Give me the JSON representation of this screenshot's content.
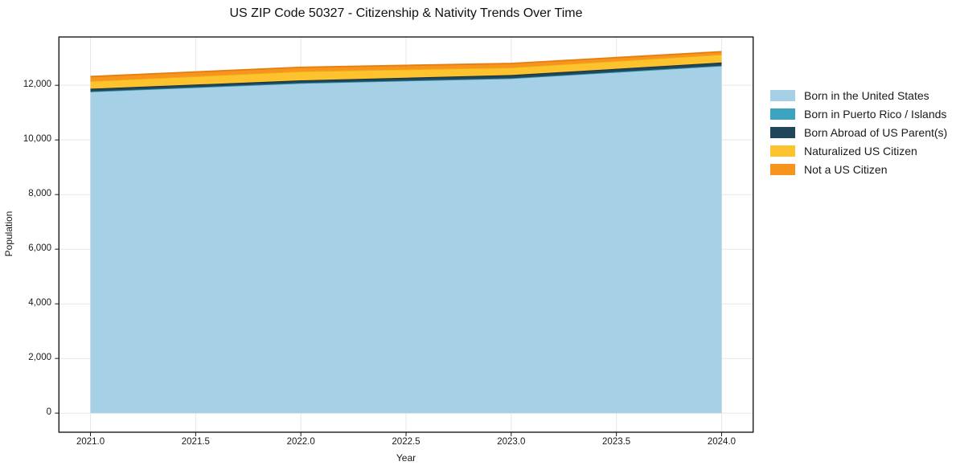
{
  "window": {
    "background": "#ffffff",
    "text_color": "#1a1a1a",
    "grid_color": "#e7e7e7",
    "spine_color": "#1a1a1a"
  },
  "chart_data": {
    "type": "area",
    "title": "US ZIP Code 50327 - Citizenship & Nativity Trends Over Time",
    "xlabel": "Year",
    "ylabel": "Population",
    "x": [
      2021,
      2022,
      2023,
      2024
    ],
    "series": [
      {
        "name": "Born in the United States",
        "color": "#a6d0e6",
        "edge": "#86bcd9",
        "values": [
          11770,
          12080,
          12255,
          12715
        ]
      },
      {
        "name": "Born in Puerto Rico / Islands",
        "color": "#3ba2bf",
        "edge": "#2d8ba6",
        "values": [
          5,
          5,
          5,
          5
        ]
      },
      {
        "name": "Born Abroad of US Parent(s)",
        "color": "#21465a",
        "edge": "#16323f",
        "values": [
          100,
          95,
          115,
          115
        ]
      },
      {
        "name": "Naturalized US Citizen",
        "color": "#fdc32f",
        "edge": "#f0ae14",
        "values": [
          275,
          330,
          275,
          290
        ]
      },
      {
        "name": "Not a US Citizen",
        "color": "#f7941e",
        "edge": "#e67e0e",
        "values": [
          170,
          150,
          150,
          105
        ]
      }
    ],
    "stacked": true,
    "xticks": [
      2021.0,
      2021.5,
      2022.0,
      2022.5,
      2023.0,
      2023.5,
      2024.0
    ],
    "xtick_labels": [
      "2021.0",
      "2021.5",
      "2022.0",
      "2022.5",
      "2023.0",
      "2023.5",
      "2024.0"
    ],
    "yticks": [
      0,
      2000,
      4000,
      6000,
      8000,
      10000,
      12000
    ],
    "ytick_labels": [
      "0",
      "2,000",
      "4,000",
      "6,000",
      "8,000",
      "10,000",
      "12,000"
    ],
    "xlim": [
      2020.85,
      2024.15
    ],
    "ylim": [
      -700,
      13770
    ],
    "grid": true,
    "legend_position": "right-outside"
  }
}
